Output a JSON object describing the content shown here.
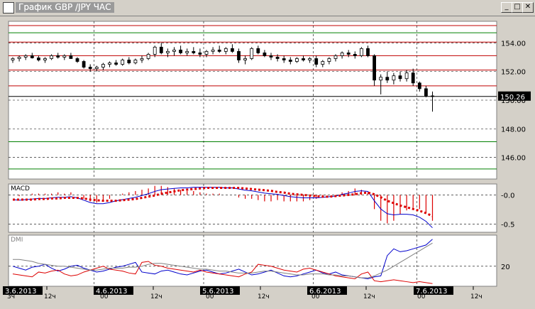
{
  "window": {
    "title": "График GBP /JPY  ЧАС",
    "minimize_glyph": "_",
    "maximize_glyph": "□",
    "close_glyph": "✕"
  },
  "colors": {
    "background": "#ffffff",
    "frame": "#d4d0c8",
    "up_candle": "#000000",
    "down_candle": "#000000",
    "resistance_line": "#c00000",
    "green_line": "#008000",
    "macd_line": "#0000cc",
    "macd_signal": "#dd0000",
    "dmi_plus": "#0000cc",
    "dmi_minus": "#dd0000",
    "dmi_adx": "#808080"
  },
  "chart_data": [
    {
      "type": "candlestick",
      "title": "",
      "ylim": [
        144.5,
        155.5
      ],
      "yticks": [
        "154.00",
        "152.00",
        "150.00",
        "148.00",
        "146.00"
      ],
      "last_price": "150.26",
      "horizontal_levels": [
        {
          "value": 155.2,
          "color": "red"
        },
        {
          "value": 154.7,
          "color": "green"
        },
        {
          "value": 154.05,
          "color": "red"
        },
        {
          "value": 153.1,
          "color": "red"
        },
        {
          "value": 152.1,
          "color": "red"
        },
        {
          "value": 151.0,
          "color": "red"
        },
        {
          "value": 150.26,
          "color": "black"
        },
        {
          "value": 147.1,
          "color": "green"
        },
        {
          "value": 145.2,
          "color": "green"
        }
      ],
      "candles": [
        [
          152.8,
          153.0,
          152.6,
          152.9
        ],
        [
          152.9,
          153.1,
          152.7,
          153.0
        ],
        [
          153.0,
          153.2,
          152.8,
          153.1
        ],
        [
          153.1,
          153.3,
          152.9,
          152.95
        ],
        [
          152.95,
          153.1,
          152.7,
          152.8
        ],
        [
          152.8,
          153.0,
          152.6,
          152.9
        ],
        [
          152.9,
          153.2,
          152.8,
          153.1
        ],
        [
          153.1,
          153.3,
          152.9,
          153.0
        ],
        [
          153.0,
          153.2,
          152.8,
          153.1
        ],
        [
          153.1,
          153.3,
          152.9,
          152.9
        ],
        [
          152.9,
          153.0,
          152.6,
          152.7
        ],
        [
          152.7,
          152.8,
          152.2,
          152.3
        ],
        [
          152.3,
          152.5,
          152.0,
          152.2
        ],
        [
          152.2,
          152.4,
          152.0,
          152.3
        ],
        [
          152.3,
          152.6,
          152.1,
          152.5
        ],
        [
          152.5,
          152.7,
          152.3,
          152.6
        ],
        [
          152.6,
          152.8,
          152.4,
          152.5
        ],
        [
          152.5,
          152.9,
          152.4,
          152.8
        ],
        [
          152.8,
          153.0,
          152.5,
          152.6
        ],
        [
          152.6,
          152.9,
          152.5,
          152.8
        ],
        [
          152.8,
          153.1,
          152.6,
          152.9
        ],
        [
          152.9,
          153.3,
          152.8,
          153.2
        ],
        [
          153.2,
          153.8,
          153.0,
          153.7
        ],
        [
          153.7,
          154.0,
          153.2,
          153.3
        ],
        [
          153.3,
          153.6,
          153.0,
          153.4
        ],
        [
          153.4,
          153.7,
          153.1,
          153.5
        ],
        [
          153.5,
          153.8,
          153.2,
          153.3
        ],
        [
          153.3,
          153.6,
          153.1,
          153.4
        ],
        [
          153.4,
          153.7,
          153.2,
          153.3
        ],
        [
          153.3,
          153.6,
          153.0,
          153.2
        ],
        [
          153.2,
          153.5,
          153.0,
          153.4
        ],
        [
          153.4,
          153.7,
          153.2,
          153.5
        ],
        [
          153.5,
          153.8,
          153.3,
          153.4
        ],
        [
          153.4,
          153.7,
          153.2,
          153.6
        ],
        [
          153.6,
          153.9,
          153.3,
          153.4
        ],
        [
          153.4,
          153.6,
          152.6,
          152.8
        ],
        [
          152.8,
          153.1,
          152.5,
          152.9
        ],
        [
          152.9,
          153.7,
          152.8,
          153.6
        ],
        [
          153.6,
          153.8,
          153.2,
          153.3
        ],
        [
          153.3,
          153.5,
          153.0,
          153.1
        ],
        [
          153.1,
          153.3,
          152.8,
          153.0
        ],
        [
          153.0,
          153.2,
          152.7,
          152.9
        ],
        [
          152.9,
          153.1,
          152.6,
          152.8
        ],
        [
          152.8,
          153.0,
          152.5,
          152.7
        ],
        [
          152.7,
          153.0,
          152.6,
          152.9
        ],
        [
          152.9,
          153.1,
          152.7,
          152.8
        ],
        [
          152.8,
          153.0,
          152.6,
          152.9
        ],
        [
          152.9,
          153.1,
          152.3,
          152.5
        ],
        [
          152.5,
          152.8,
          152.3,
          152.7
        ],
        [
          152.7,
          153.0,
          152.5,
          152.9
        ],
        [
          152.9,
          153.2,
          152.7,
          153.1
        ],
        [
          153.1,
          153.4,
          152.9,
          153.3
        ],
        [
          153.3,
          153.5,
          153.0,
          153.2
        ],
        [
          153.2,
          153.4,
          152.9,
          153.1
        ],
        [
          153.1,
          153.7,
          153.0,
          153.6
        ],
        [
          153.6,
          153.8,
          153.0,
          153.1
        ],
        [
          153.1,
          153.2,
          151.0,
          151.4
        ],
        [
          151.4,
          151.8,
          150.4,
          151.6
        ],
        [
          151.6,
          152.0,
          151.2,
          151.4
        ],
        [
          151.4,
          151.9,
          151.1,
          151.7
        ],
        [
          151.7,
          152.0,
          151.3,
          151.5
        ],
        [
          151.5,
          152.1,
          151.3,
          151.9
        ],
        [
          151.9,
          152.2,
          151.0,
          151.2
        ],
        [
          151.2,
          151.3,
          150.6,
          150.8
        ],
        [
          150.8,
          151.0,
          150.2,
          150.3
        ],
        [
          150.3,
          150.6,
          149.2,
          150.26
        ]
      ]
    },
    {
      "type": "line",
      "title": "MACD",
      "ylim": [
        -0.6,
        0.15
      ],
      "yticks": [
        "-0.0",
        "-0.5"
      ],
      "series": [
        {
          "values": [
            -0.08,
            -0.09,
            -0.08,
            -0.07,
            -0.06,
            -0.06,
            -0.05,
            -0.04,
            -0.04,
            -0.03,
            -0.05,
            -0.09,
            -0.13,
            -0.15,
            -0.15,
            -0.13,
            -0.1,
            -0.08,
            -0.06,
            -0.04,
            -0.01,
            0.02,
            0.06,
            0.09,
            0.1,
            0.11,
            0.12,
            0.12,
            0.13,
            0.13,
            0.13,
            0.13,
            0.13,
            0.12,
            0.12,
            0.1,
            0.08,
            0.07,
            0.05,
            0.03,
            0.02,
            0.01,
            -0.01,
            -0.03,
            -0.04,
            -0.05,
            -0.05,
            -0.05,
            -0.04,
            -0.03,
            -0.02,
            0.01,
            0.03,
            0.06,
            0.07,
            0.06,
            -0.1,
            -0.24,
            -0.32,
            -0.34,
            -0.33,
            -0.33,
            -0.34,
            -0.38,
            -0.45,
            -0.56
          ]
        },
        {
          "values": [
            -0.08,
            -0.08,
            -0.08,
            -0.08,
            -0.07,
            -0.07,
            -0.06,
            -0.06,
            -0.05,
            -0.05,
            -0.05,
            -0.06,
            -0.08,
            -0.09,
            -0.1,
            -0.1,
            -0.1,
            -0.09,
            -0.08,
            -0.07,
            -0.05,
            -0.03,
            -0.01,
            0.02,
            0.04,
            0.06,
            0.08,
            0.09,
            0.1,
            0.11,
            0.12,
            0.12,
            0.12,
            0.12,
            0.12,
            0.12,
            0.11,
            0.1,
            0.09,
            0.08,
            0.07,
            0.05,
            0.04,
            0.02,
            0.01,
            0.0,
            -0.01,
            -0.02,
            -0.03,
            -0.03,
            -0.02,
            -0.01,
            0.0,
            0.01,
            0.03,
            0.04,
            0.01,
            -0.04,
            -0.1,
            -0.14,
            -0.18,
            -0.21,
            -0.24,
            -0.27,
            -0.31,
            -0.36
          ]
        }
      ]
    },
    {
      "type": "line",
      "title": "DMI",
      "ylim": [
        0,
        50
      ],
      "yticks": [
        "20"
      ],
      "series": [
        {
          "values": [
            20,
            18,
            16,
            19,
            20,
            22,
            18,
            15,
            17,
            20,
            21,
            18,
            16,
            14,
            15,
            17,
            19,
            20,
            22,
            24,
            14,
            13,
            12,
            15,
            16,
            14,
            12,
            11,
            13,
            15,
            16,
            14,
            12,
            13,
            15,
            17,
            14,
            11,
            12,
            14,
            16,
            13,
            10,
            9,
            10,
            12,
            14,
            16,
            13,
            12,
            14,
            11,
            10,
            9,
            8,
            7,
            9,
            10,
            31,
            38,
            35,
            36,
            38,
            40,
            42,
            48
          ]
        },
        {
          "values": [
            12,
            11,
            10,
            9,
            14,
            13,
            15,
            16,
            12,
            10,
            11,
            14,
            16,
            18,
            20,
            17,
            16,
            15,
            13,
            12,
            24,
            25,
            21,
            20,
            18,
            17,
            16,
            15,
            14,
            16,
            14,
            13,
            12,
            11,
            10,
            9,
            12,
            14,
            22,
            21,
            20,
            18,
            16,
            15,
            14,
            17,
            18,
            16,
            14,
            12,
            10,
            9,
            8,
            7,
            12,
            14,
            5,
            4,
            5,
            6,
            5,
            4,
            3,
            4,
            3,
            2
          ]
        },
        {
          "values": [
            27,
            27,
            26,
            25,
            23,
            22,
            21,
            20,
            20,
            19,
            18,
            17,
            16,
            16,
            17,
            18,
            18,
            18,
            19,
            19,
            20,
            22,
            23,
            23,
            22,
            21,
            20,
            19,
            18,
            17,
            17,
            16,
            15,
            15,
            14,
            13,
            13,
            13,
            14,
            15,
            15,
            14,
            13,
            12,
            11,
            11,
            12,
            12,
            12,
            11,
            11,
            10,
            10,
            9,
            8,
            8,
            10,
            13,
            16,
            20,
            24,
            28,
            32,
            36,
            40,
            44
          ]
        }
      ]
    }
  ],
  "time_axis": {
    "date_labels": [
      "3.6.2013",
      "4.6.2013",
      "5.6.2013",
      "6.6.2013",
      "7.6.2013"
    ],
    "hour_labels": [
      "3ч",
      "12ч",
      "00",
      "12ч",
      "00",
      "12ч",
      "00",
      "12ч",
      "00",
      "12ч"
    ]
  }
}
